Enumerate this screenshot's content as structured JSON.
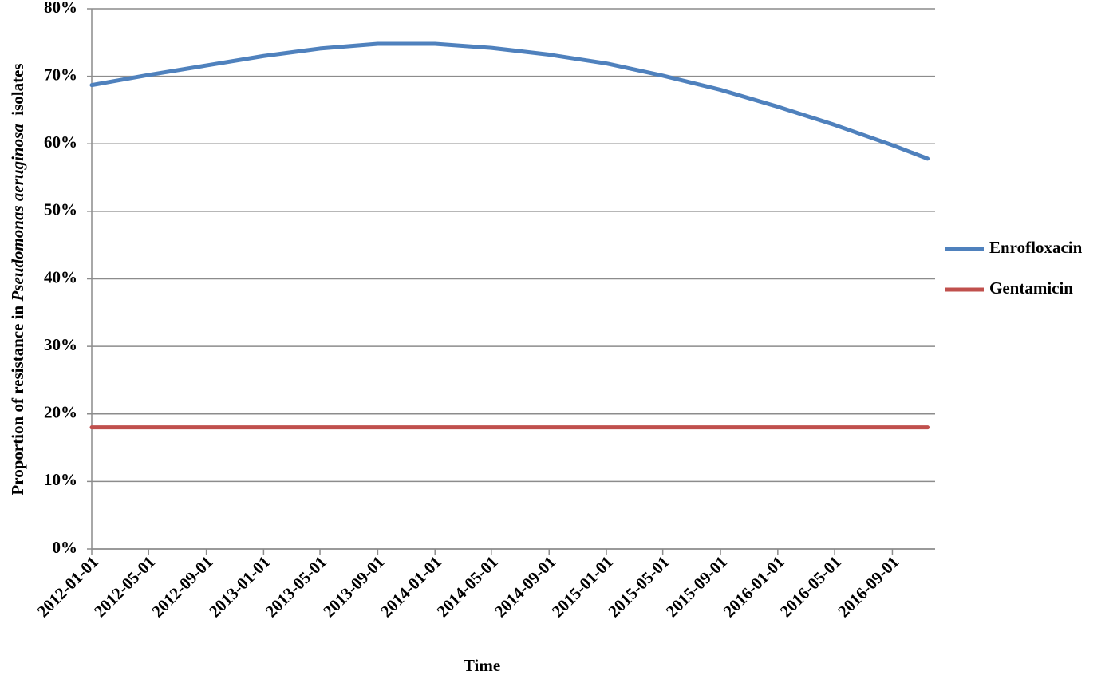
{
  "chart_data": {
    "type": "line",
    "y_label": [
      "Proportion of resistance in ",
      "Pseudomonas aeruginosa",
      "  isolates"
    ],
    "x_label": "Time",
    "x": [
      "2012-01-01",
      "2012-05-01",
      "2012-09-01",
      "2013-01-01",
      "2013-05-01",
      "2013-09-01",
      "2014-01-01",
      "2014-05-01",
      "2014-09-01",
      "2015-01-01",
      "2015-05-01",
      "2015-09-01",
      "2016-01-01",
      "2016-05-01",
      "2016-09-01",
      "2016-11-15"
    ],
    "series": [
      {
        "name": "Enrofloxacin",
        "color": "#4f81bd",
        "values": [
          68.7,
          70.2,
          71.6,
          73.0,
          74.1,
          74.8,
          74.8,
          74.2,
          73.2,
          71.9,
          70.1,
          68.0,
          65.5,
          62.8,
          59.8,
          57.8
        ]
      },
      {
        "name": "Gentamicin",
        "color": "#c0504d",
        "values": [
          18,
          18,
          18,
          18,
          18,
          18,
          18,
          18,
          18,
          18,
          18,
          18,
          18,
          18,
          18,
          18
        ]
      }
    ],
    "xlim": [
      "2012-01-01",
      "2016-12-01"
    ],
    "xticks": [
      "2012-01-01",
      "2012-05-01",
      "2012-09-01",
      "2013-01-01",
      "2013-05-01",
      "2013-09-01",
      "2014-01-01",
      "2014-05-01",
      "2014-09-01",
      "2015-01-01",
      "2015-05-01",
      "2015-09-01",
      "2016-01-01",
      "2016-05-01",
      "2016-09-01"
    ],
    "ylim": [
      0,
      80
    ],
    "yticks": [
      {
        "value": 0,
        "label": "0%"
      },
      {
        "value": 10,
        "label": "10%"
      },
      {
        "value": 20,
        "label": "20%"
      },
      {
        "value": 30,
        "label": "30%"
      },
      {
        "value": 40,
        "label": "40%"
      },
      {
        "value": 50,
        "label": "50%"
      },
      {
        "value": 60,
        "label": "60%"
      },
      {
        "value": 70,
        "label": "70%"
      },
      {
        "value": 80,
        "label": "80%"
      }
    ],
    "grid": true,
    "legend": "right"
  }
}
